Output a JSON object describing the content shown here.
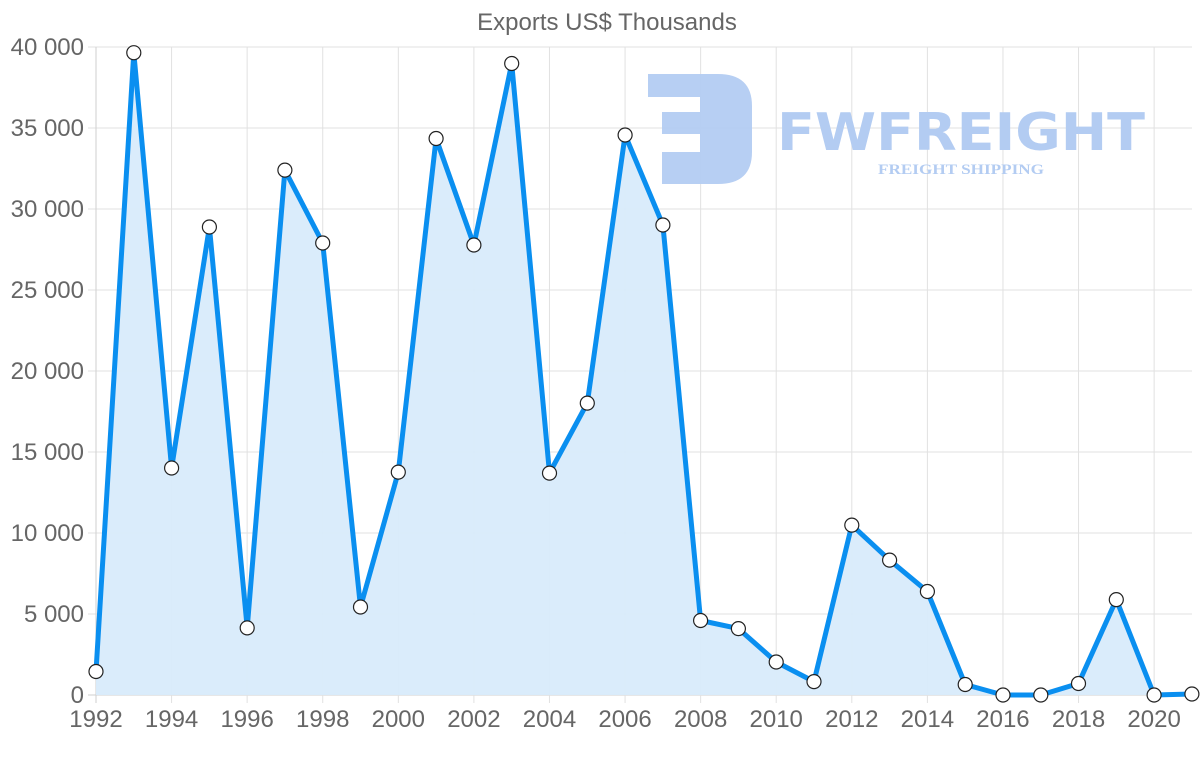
{
  "chart_data": {
    "type": "area",
    "title": "Exports US$ Thousands",
    "xlabel": "",
    "ylabel": "",
    "x": [
      1992,
      1993,
      1994,
      1995,
      1996,
      1997,
      1998,
      1999,
      2000,
      2001,
      2002,
      2003,
      2004,
      2005,
      2006,
      2007,
      2008,
      2009,
      2010,
      2011,
      2012,
      2013,
      2014,
      2015,
      2016,
      2017,
      2018,
      2019,
      2020,
      2021
    ],
    "series": [
      {
        "name": "Exports US$ Thousands",
        "color": "#0a8ff0",
        "fill": "#d8ebfb",
        "values": [
          1450,
          39650,
          14010,
          28890,
          4140,
          32400,
          27900,
          5430,
          13760,
          34350,
          27780,
          38980,
          13700,
          18020,
          34570,
          29010,
          4600,
          4100,
          2040,
          830,
          10490,
          8330,
          6390,
          650,
          0,
          0,
          710,
          5890,
          0,
          60
        ]
      }
    ],
    "ylim": [
      0,
      40000
    ],
    "yticks": [
      0,
      5000,
      10000,
      15000,
      20000,
      25000,
      30000,
      35000,
      40000
    ],
    "ytick_labels": [
      "0",
      "5 000",
      "10 000",
      "15 000",
      "20 000",
      "25 000",
      "30 000",
      "35 000",
      "40 000"
    ],
    "xticks": [
      1992,
      1994,
      1996,
      1998,
      2000,
      2002,
      2004,
      2006,
      2008,
      2010,
      2012,
      2014,
      2016,
      2018,
      2020
    ],
    "xtick_labels": [
      "1992",
      "1994",
      "1996",
      "1998",
      "2000",
      "2002",
      "2004",
      "2006",
      "2008",
      "2010",
      "2012",
      "2014",
      "2016",
      "2018",
      "2020"
    ],
    "grid": true,
    "legend": "none",
    "markers": "circle-white"
  },
  "watermark": {
    "brand": "FWFREIGHT",
    "tagline": "FREIGHT SHIPPING",
    "color": "#b3ccf2"
  }
}
